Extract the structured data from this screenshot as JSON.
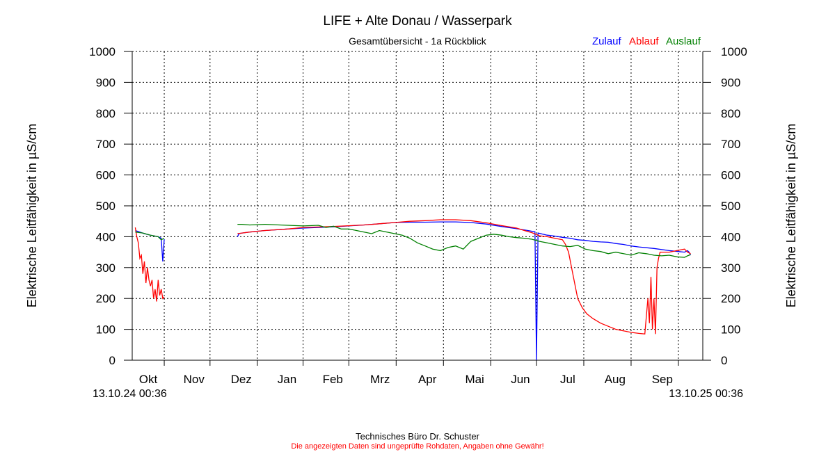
{
  "chart_data": {
    "type": "line",
    "title": "LIFE + Alte Donau / Wasserpark",
    "subtitle": "Gesamtübersicht - 1a Rückblick",
    "ylabel_left": "Elektrische Leitfähigkeit in µS/cm",
    "ylabel_right": "Elektrische Leitfähigkeit in µS/cm",
    "ylim": [
      0,
      1000
    ],
    "yticks": [
      0,
      100,
      200,
      300,
      400,
      500,
      600,
      700,
      800,
      900,
      1000
    ],
    "x_unit": "days since 13.10.24 00:36",
    "xlim": [
      -2,
      372
    ],
    "month_ticks": [
      {
        "label": "Okt",
        "day": 19
      },
      {
        "label": "Nov",
        "day": 49
      },
      {
        "label": "Dez",
        "day": 80
      },
      {
        "label": "Jan",
        "day": 110
      },
      {
        "label": "Feb",
        "day": 140
      },
      {
        "label": "Mrz",
        "day": 171
      },
      {
        "label": "Apr",
        "day": 202
      },
      {
        "label": "Mai",
        "day": 233
      },
      {
        "label": "Jun",
        "day": 263
      },
      {
        "label": "Jul",
        "day": 294
      },
      {
        "label": "Aug",
        "day": 325
      },
      {
        "label": "Sep",
        "day": 356
      }
    ],
    "start_label": "13.10.24 00:36",
    "end_label": "13.10.25 00:36",
    "grid": true,
    "legend_position": "top-right",
    "series": [
      {
        "name": "Zulauf",
        "color": "#0000ff",
        "points": [
          [
            0,
            420
          ],
          [
            3,
            415
          ],
          [
            6,
            410
          ],
          [
            10,
            405
          ],
          [
            15,
            400
          ],
          [
            17,
            395
          ],
          [
            18,
            320
          ],
          [
            19,
            392
          ],
          [
            67,
            null
          ],
          [
            67,
            400
          ],
          [
            68,
            410
          ],
          [
            70,
            412
          ],
          [
            75,
            415
          ],
          [
            85,
            420
          ],
          [
            100,
            425
          ],
          [
            110,
            428
          ],
          [
            130,
            432
          ],
          [
            150,
            438
          ],
          [
            160,
            442
          ],
          [
            170,
            446
          ],
          [
            180,
            447
          ],
          [
            190,
            447
          ],
          [
            200,
            448
          ],
          [
            210,
            448
          ],
          [
            220,
            446
          ],
          [
            230,
            441
          ],
          [
            240,
            433
          ],
          [
            250,
            426
          ],
          [
            255,
            422
          ],
          [
            262,
            416
          ],
          [
            263,
            0
          ],
          [
            264,
            412
          ],
          [
            270,
            405
          ],
          [
            275,
            402
          ],
          [
            280,
            398
          ],
          [
            285,
            395
          ],
          [
            290,
            390
          ],
          [
            295,
            388
          ],
          [
            300,
            385
          ],
          [
            305,
            383
          ],
          [
            310,
            382
          ],
          [
            315,
            378
          ],
          [
            320,
            375
          ],
          [
            325,
            370
          ],
          [
            330,
            367
          ],
          [
            340,
            362
          ],
          [
            350,
            355
          ],
          [
            356,
            352
          ],
          [
            360,
            350
          ],
          [
            362,
            355
          ],
          [
            363,
            350
          ],
          [
            364,
            340
          ]
        ]
      },
      {
        "name": "Ablauf",
        "color": "#ff0000",
        "points": [
          [
            0,
            430
          ],
          [
            1,
            400
          ],
          [
            2,
            380
          ],
          [
            3,
            330
          ],
          [
            4,
            340
          ],
          [
            5,
            280
          ],
          [
            6,
            320
          ],
          [
            7,
            250
          ],
          [
            8,
            300
          ],
          [
            9,
            260
          ],
          [
            10,
            240
          ],
          [
            11,
            260
          ],
          [
            12,
            200
          ],
          [
            13,
            230
          ],
          [
            14,
            190
          ],
          [
            15,
            260
          ],
          [
            16,
            210
          ],
          [
            17,
            230
          ],
          [
            18,
            200
          ],
          [
            19,
            205
          ],
          [
            67,
            null
          ],
          [
            67,
            410
          ],
          [
            70,
            412
          ],
          [
            75,
            415
          ],
          [
            85,
            420
          ],
          [
            100,
            425
          ],
          [
            110,
            430
          ],
          [
            130,
            433
          ],
          [
            150,
            438
          ],
          [
            160,
            442
          ],
          [
            170,
            446
          ],
          [
            180,
            450
          ],
          [
            190,
            452
          ],
          [
            200,
            455
          ],
          [
            210,
            455
          ],
          [
            220,
            452
          ],
          [
            230,
            445
          ],
          [
            240,
            436
          ],
          [
            250,
            428
          ],
          [
            255,
            420
          ],
          [
            260,
            413
          ],
          [
            265,
            403
          ],
          [
            270,
            400
          ],
          [
            275,
            395
          ],
          [
            280,
            390
          ],
          [
            282,
            375
          ],
          [
            284,
            350
          ],
          [
            286,
            300
          ],
          [
            288,
            250
          ],
          [
            290,
            200
          ],
          [
            293,
            170
          ],
          [
            296,
            150
          ],
          [
            300,
            135
          ],
          [
            305,
            120
          ],
          [
            310,
            110
          ],
          [
            315,
            100
          ],
          [
            320,
            95
          ],
          [
            325,
            90
          ],
          [
            330,
            87
          ],
          [
            332,
            86
          ],
          [
            334,
            85
          ],
          [
            336,
            200
          ],
          [
            337,
            120
          ],
          [
            338,
            270
          ],
          [
            339,
            100
          ],
          [
            340,
            200
          ],
          [
            341,
            85
          ],
          [
            342,
            300
          ],
          [
            343,
            330
          ],
          [
            344,
            350
          ],
          [
            350,
            350
          ],
          [
            355,
            355
          ],
          [
            360,
            360
          ],
          [
            362,
            350
          ],
          [
            364,
            345
          ]
        ]
      },
      {
        "name": "Auslauf",
        "color": "#008000",
        "points": [
          [
            0,
            415
          ],
          [
            5,
            412
          ],
          [
            10,
            405
          ],
          [
            15,
            400
          ],
          [
            17,
            390
          ],
          [
            19,
            395
          ],
          [
            67,
            null
          ],
          [
            67,
            440
          ],
          [
            70,
            440
          ],
          [
            75,
            438
          ],
          [
            85,
            440
          ],
          [
            100,
            437
          ],
          [
            110,
            435
          ],
          [
            120,
            437
          ],
          [
            125,
            430
          ],
          [
            130,
            434
          ],
          [
            135,
            425
          ],
          [
            140,
            425
          ],
          [
            145,
            420
          ],
          [
            150,
            415
          ],
          [
            155,
            410
          ],
          [
            160,
            420
          ],
          [
            165,
            415
          ],
          [
            170,
            410
          ],
          [
            175,
            405
          ],
          [
            180,
            395
          ],
          [
            185,
            380
          ],
          [
            190,
            370
          ],
          [
            195,
            360
          ],
          [
            200,
            355
          ],
          [
            205,
            365
          ],
          [
            210,
            370
          ],
          [
            215,
            360
          ],
          [
            220,
            385
          ],
          [
            225,
            395
          ],
          [
            230,
            405
          ],
          [
            235,
            408
          ],
          [
            240,
            405
          ],
          [
            245,
            400
          ],
          [
            250,
            397
          ],
          [
            255,
            395
          ],
          [
            260,
            392
          ],
          [
            265,
            385
          ],
          [
            270,
            380
          ],
          [
            275,
            375
          ],
          [
            280,
            370
          ],
          [
            285,
            368
          ],
          [
            290,
            372
          ],
          [
            295,
            360
          ],
          [
            300,
            355
          ],
          [
            305,
            352
          ],
          [
            310,
            345
          ],
          [
            315,
            350
          ],
          [
            320,
            345
          ],
          [
            325,
            340
          ],
          [
            330,
            348
          ],
          [
            335,
            345
          ],
          [
            340,
            340
          ],
          [
            345,
            338
          ],
          [
            350,
            340
          ],
          [
            355,
            335
          ],
          [
            360,
            333
          ],
          [
            362,
            338
          ],
          [
            364,
            342
          ]
        ]
      }
    ]
  },
  "footer": {
    "company": "Technisches Büro Dr. Schuster",
    "disclaimer": "Die angezeigten Daten sind ungeprüfte Rohdaten, Angaben ohne Gewähr!"
  }
}
